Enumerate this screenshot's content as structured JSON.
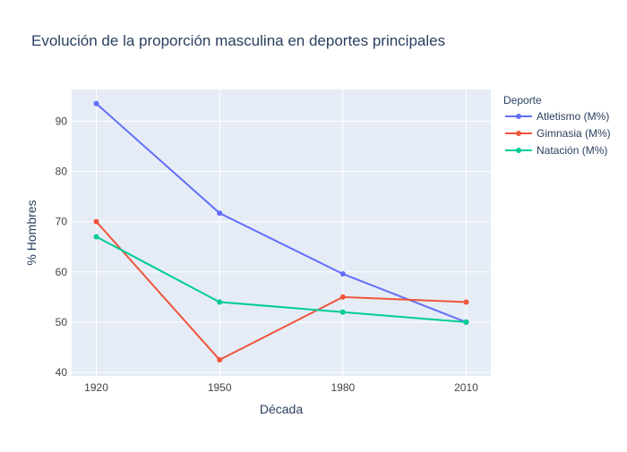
{
  "chart_data": {
    "type": "line",
    "title": "Evolución de la proporción masculina en deportes principales",
    "xlabel": "Década",
    "ylabel": "% Hombres",
    "x": [
      1920,
      1950,
      1980,
      2010
    ],
    "xlim": [
      1914,
      2016
    ],
    "ylim": [
      39.3,
      96.3
    ],
    "yticks": [
      40,
      50,
      60,
      70,
      80,
      90
    ],
    "grid": true,
    "legend": {
      "title": "Deporte",
      "placement": "right-top"
    },
    "series": [
      {
        "name": "Atletismo (M%)",
        "color": "#636efa",
        "values": [
          93.5,
          71.7,
          59.6,
          50.0
        ]
      },
      {
        "name": "Gimnasia (M%)",
        "color": "#EF553B",
        "values": [
          70.0,
          42.5,
          55.0,
          54.0
        ]
      },
      {
        "name": "Natación (M%)",
        "color": "#00cc96",
        "values": [
          67.0,
          54.0,
          52.0,
          50.0
        ]
      }
    ],
    "colors": {
      "plot_bg": "#E5ECF6",
      "grid": "#ffffff",
      "text": "#2a3f5f",
      "axis_text": "#444444"
    }
  }
}
